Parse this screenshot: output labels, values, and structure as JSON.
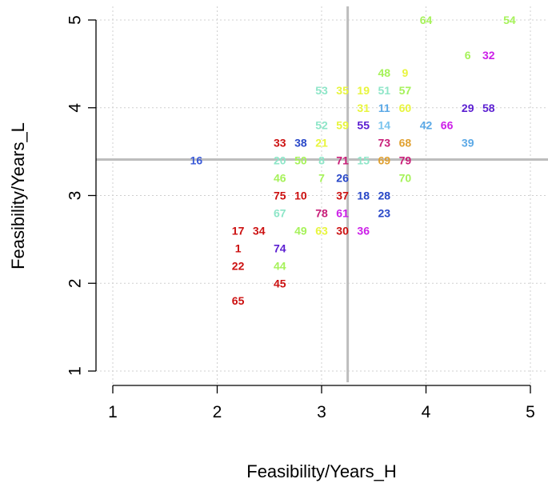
{
  "chart_data": {
    "type": "scatter",
    "title": "",
    "xlabel": "Feasibility/Years_H",
    "ylabel": "Feasibility/Years_L",
    "xlim": [
      0.85,
      5.15
    ],
    "ylim": [
      0.9,
      5.1
    ],
    "x_ticks": [
      "1",
      "2",
      "3",
      "4",
      "5"
    ],
    "y_ticks": [
      "1",
      "2",
      "3",
      "4",
      "5"
    ],
    "grid": true,
    "reference_lines": {
      "x": 3.25,
      "y": 3.41
    },
    "points": [
      {
        "label": "64",
        "x": 4.0,
        "y": 5.0,
        "color": "#a6f25a"
      },
      {
        "label": "54",
        "x": 4.8,
        "y": 5.0,
        "color": "#a6f25a"
      },
      {
        "label": "6",
        "x": 4.4,
        "y": 4.6,
        "color": "#a6f25a"
      },
      {
        "label": "32",
        "x": 4.6,
        "y": 4.6,
        "color": "#cc1fe8"
      },
      {
        "label": "48",
        "x": 3.6,
        "y": 4.4,
        "color": "#a6f25a"
      },
      {
        "label": "9",
        "x": 3.8,
        "y": 4.4,
        "color": "#e8f53d"
      },
      {
        "label": "53",
        "x": 3.0,
        "y": 4.2,
        "color": "#8ee6c8"
      },
      {
        "label": "35",
        "x": 3.2,
        "y": 4.2,
        "color": "#e8f53d"
      },
      {
        "label": "19",
        "x": 3.4,
        "y": 4.2,
        "color": "#e8f53d"
      },
      {
        "label": "51",
        "x": 3.6,
        "y": 4.2,
        "color": "#8ee6c8"
      },
      {
        "label": "57",
        "x": 3.8,
        "y": 4.2,
        "color": "#a6f25a"
      },
      {
        "label": "31",
        "x": 3.4,
        "y": 4.0,
        "color": "#e8f53d"
      },
      {
        "label": "11",
        "x": 3.6,
        "y": 4.0,
        "color": "#5aa8e6"
      },
      {
        "label": "60",
        "x": 3.8,
        "y": 4.0,
        "color": "#e8f53d"
      },
      {
        "label": "29",
        "x": 4.4,
        "y": 4.0,
        "color": "#5b1ed1"
      },
      {
        "label": "58",
        "x": 4.6,
        "y": 4.0,
        "color": "#5b1ed1"
      },
      {
        "label": "52",
        "x": 3.0,
        "y": 3.8,
        "color": "#8ee6c8"
      },
      {
        "label": "59",
        "x": 3.2,
        "y": 3.8,
        "color": "#e8f53d"
      },
      {
        "label": "55",
        "x": 3.4,
        "y": 3.8,
        "color": "#5b1ed1"
      },
      {
        "label": "14",
        "x": 3.6,
        "y": 3.8,
        "color": "#7ac4ee"
      },
      {
        "label": "42",
        "x": 4.0,
        "y": 3.8,
        "color": "#5aa8e6"
      },
      {
        "label": "66",
        "x": 4.2,
        "y": 3.8,
        "color": "#cc1fe8"
      },
      {
        "label": "33",
        "x": 2.6,
        "y": 3.6,
        "color": "#cc1010"
      },
      {
        "label": "38",
        "x": 2.8,
        "y": 3.6,
        "color": "#2847c8"
      },
      {
        "label": "21",
        "x": 3.0,
        "y": 3.6,
        "color": "#e8f53d"
      },
      {
        "label": "73",
        "x": 3.6,
        "y": 3.6,
        "color": "#c81d78"
      },
      {
        "label": "68",
        "x": 3.8,
        "y": 3.6,
        "color": "#e0a030"
      },
      {
        "label": "39",
        "x": 4.4,
        "y": 3.6,
        "color": "#5aa8e6"
      },
      {
        "label": "16",
        "x": 1.8,
        "y": 3.4,
        "color": "#3a5ad8"
      },
      {
        "label": "20",
        "x": 2.6,
        "y": 3.4,
        "color": "#8ee6c8"
      },
      {
        "label": "50",
        "x": 2.8,
        "y": 3.4,
        "color": "#a6f25a"
      },
      {
        "label": "8",
        "x": 3.0,
        "y": 3.4,
        "color": "#8ee6c8"
      },
      {
        "label": "71",
        "x": 3.2,
        "y": 3.4,
        "color": "#c81d78"
      },
      {
        "label": "15",
        "x": 3.4,
        "y": 3.4,
        "color": "#8ee6c8"
      },
      {
        "label": "69",
        "x": 3.6,
        "y": 3.4,
        "color": "#e0a030"
      },
      {
        "label": "79",
        "x": 3.8,
        "y": 3.4,
        "color": "#c81d78"
      },
      {
        "label": "46",
        "x": 2.6,
        "y": 3.2,
        "color": "#a6f25a"
      },
      {
        "label": "7",
        "x": 3.0,
        "y": 3.2,
        "color": "#a6f25a"
      },
      {
        "label": "26",
        "x": 3.2,
        "y": 3.2,
        "color": "#2847c8"
      },
      {
        "label": "70",
        "x": 3.8,
        "y": 3.2,
        "color": "#a6f25a"
      },
      {
        "label": "75",
        "x": 2.6,
        "y": 3.0,
        "color": "#cc1010"
      },
      {
        "label": "10",
        "x": 2.8,
        "y": 3.0,
        "color": "#cc1010"
      },
      {
        "label": "37",
        "x": 3.2,
        "y": 3.0,
        "color": "#cc1010"
      },
      {
        "label": "18",
        "x": 3.4,
        "y": 3.0,
        "color": "#2847c8"
      },
      {
        "label": "28",
        "x": 3.6,
        "y": 3.0,
        "color": "#2847c8"
      },
      {
        "label": "67",
        "x": 2.6,
        "y": 2.8,
        "color": "#8ee6c8"
      },
      {
        "label": "78",
        "x": 3.0,
        "y": 2.8,
        "color": "#c81d78"
      },
      {
        "label": "61",
        "x": 3.2,
        "y": 2.8,
        "color": "#cc1fe8"
      },
      {
        "label": "23",
        "x": 3.6,
        "y": 2.8,
        "color": "#2847c8"
      },
      {
        "label": "17",
        "x": 2.2,
        "y": 2.6,
        "color": "#cc1010"
      },
      {
        "label": "34",
        "x": 2.4,
        "y": 2.6,
        "color": "#cc1010"
      },
      {
        "label": "49",
        "x": 2.8,
        "y": 2.6,
        "color": "#a6f25a"
      },
      {
        "label": "63",
        "x": 3.0,
        "y": 2.6,
        "color": "#e8f53d"
      },
      {
        "label": "30",
        "x": 3.2,
        "y": 2.6,
        "color": "#cc1010"
      },
      {
        "label": "36",
        "x": 3.4,
        "y": 2.6,
        "color": "#cc1fe8"
      },
      {
        "label": "1",
        "x": 2.2,
        "y": 2.4,
        "color": "#cc1010"
      },
      {
        "label": "74",
        "x": 2.6,
        "y": 2.4,
        "color": "#5b1ed1"
      },
      {
        "label": "22",
        "x": 2.2,
        "y": 2.2,
        "color": "#cc1010"
      },
      {
        "label": "44",
        "x": 2.6,
        "y": 2.2,
        "color": "#a6f25a"
      },
      {
        "label": "45",
        "x": 2.6,
        "y": 2.0,
        "color": "#cc1010"
      },
      {
        "label": "65",
        "x": 2.2,
        "y": 1.8,
        "color": "#cc1010"
      }
    ]
  }
}
